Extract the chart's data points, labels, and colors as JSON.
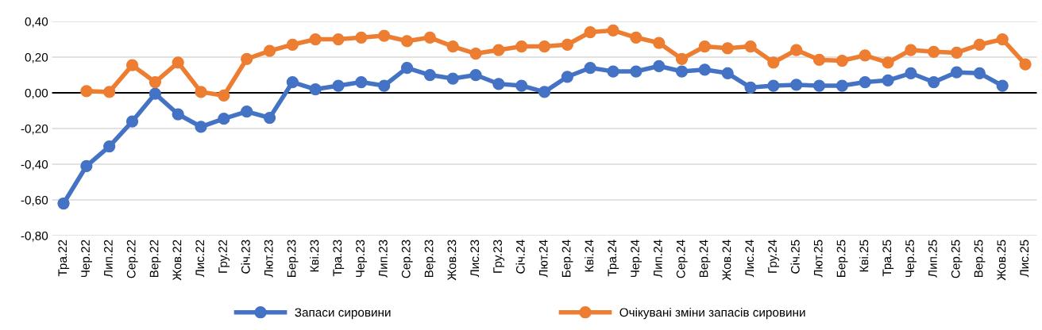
{
  "chart_data": {
    "type": "line",
    "categories": [
      "Тра.22",
      "Чер.22",
      "Лип.22",
      "Сер.22",
      "Вер.22",
      "Жов.22",
      "Лис.22",
      "Гру.22",
      "Січ.23",
      "Лют.23",
      "Бер.23",
      "Кві.23",
      "Тра.23",
      "Чер.23",
      "Лип.23",
      "Сер.23",
      "Вер.23",
      "Жов.23",
      "Лис.23",
      "Гру.23",
      "Січ.24",
      "Лют.24",
      "Бер.24",
      "Кві.24",
      "Тра.24",
      "Чер.24",
      "Лип.24",
      "Сер.24",
      "Вер.24",
      "Жов.24",
      "Лис.24",
      "Гру.24",
      "Січ.25",
      "Лют.25",
      "Бер.25",
      "Кві.25",
      "Тра.25",
      "Чер.25",
      "Лип.25",
      "Сер.25",
      "Вер.25",
      "Жов.25",
      "Лис.25"
    ],
    "series": [
      {
        "name": "Запаси сировини",
        "color": "#4472c4",
        "values": [
          -0.62,
          -0.41,
          -0.3,
          -0.16,
          -0.005,
          -0.12,
          -0.19,
          -0.145,
          -0.105,
          -0.14,
          0.06,
          0.02,
          0.04,
          0.06,
          0.04,
          0.14,
          0.1,
          0.08,
          0.1,
          0.05,
          0.04,
          0.005,
          0.09,
          0.14,
          0.12,
          0.12,
          0.15,
          0.12,
          0.13,
          0.11,
          0.03,
          0.04,
          0.045,
          0.04,
          0.04,
          0.06,
          0.07,
          0.11,
          0.06,
          0.115,
          0.11,
          0.04,
          null
        ]
      },
      {
        "name": "Очікувані зміни запасів сировини",
        "color": "#ed7d31",
        "values": [
          null,
          0.01,
          0.005,
          0.155,
          0.06,
          0.17,
          0.005,
          -0.015,
          0.19,
          0.235,
          0.27,
          0.3,
          0.3,
          0.31,
          0.32,
          0.29,
          0.31,
          0.26,
          0.22,
          0.24,
          0.26,
          0.26,
          0.27,
          0.34,
          0.35,
          0.31,
          0.28,
          0.19,
          0.26,
          0.25,
          0.26,
          0.17,
          0.24,
          0.185,
          0.18,
          0.21,
          0.17,
          0.24,
          0.23,
          0.225,
          0.27,
          0.3,
          0.16
        ]
      }
    ],
    "ylim": [
      -0.8,
      0.4
    ],
    "yticks": [
      {
        "value": -0.8,
        "label": "-0,80"
      },
      {
        "value": -0.6,
        "label": "-0,60"
      },
      {
        "value": -0.4,
        "label": "-0,40"
      },
      {
        "value": -0.2,
        "label": "-0,20"
      },
      {
        "value": 0,
        "label": "0,00"
      },
      {
        "value": 0.2,
        "label": "0,20"
      },
      {
        "value": 0.4,
        "label": "0,40"
      }
    ],
    "ref_lines": [
      {
        "axis": "y",
        "value": 0,
        "color": "#000000"
      }
    ],
    "grid": "y",
    "legend": "bottom",
    "marker": "circle",
    "line_style": "solid"
  }
}
